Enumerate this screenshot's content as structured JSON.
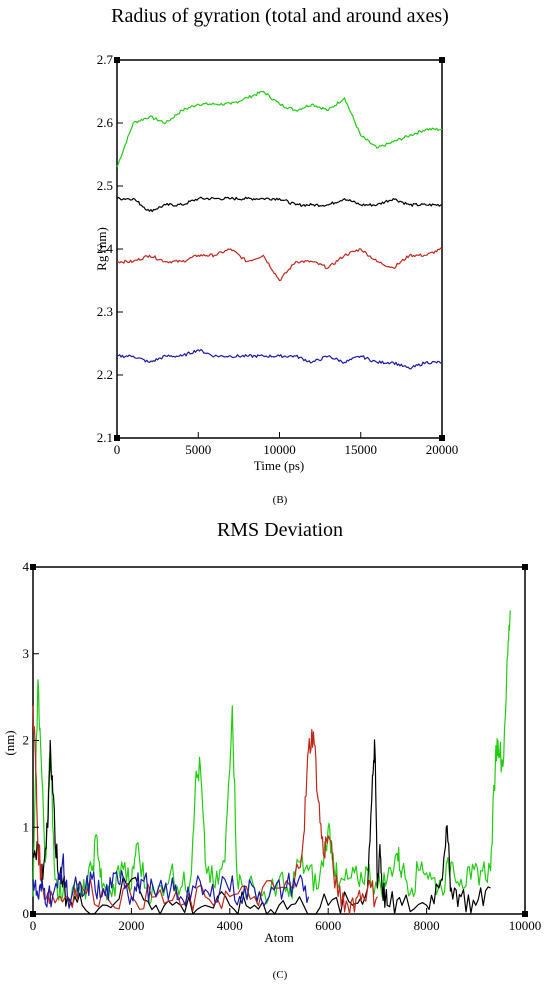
{
  "chart_data": [
    {
      "type": "line",
      "panel_label": "(B)",
      "title": "Radius of gyration (total and around axes)",
      "xlabel": "Time (ps)",
      "ylabel": "Rg (nm)",
      "xlim": [
        0,
        20000
      ],
      "ylim": [
        2.1,
        2.7
      ],
      "xticks": [
        "0",
        "5000",
        "10000",
        "15000",
        "20000"
      ],
      "yticks": [
        "2.1",
        "2.2",
        "2.3",
        "2.4",
        "2.5",
        "2.6",
        "2.7"
      ],
      "grid": false,
      "legend": "none",
      "x": [
        0,
        1000,
        2000,
        3000,
        4000,
        5000,
        6000,
        7000,
        8000,
        9000,
        10000,
        11000,
        12000,
        13000,
        14000,
        15000,
        16000,
        17000,
        18000,
        19000,
        20000
      ],
      "series": [
        {
          "color": "#22cc11",
          "values": [
            2.53,
            2.6,
            2.61,
            2.6,
            2.62,
            2.63,
            2.63,
            2.63,
            2.64,
            2.65,
            2.63,
            2.62,
            2.63,
            2.62,
            2.64,
            2.58,
            2.56,
            2.57,
            2.58,
            2.59,
            2.59
          ]
        },
        {
          "color": "#000000",
          "values": [
            2.48,
            2.48,
            2.46,
            2.47,
            2.47,
            2.48,
            2.48,
            2.48,
            2.48,
            2.48,
            2.48,
            2.47,
            2.47,
            2.47,
            2.48,
            2.47,
            2.47,
            2.48,
            2.47,
            2.47,
            2.47
          ]
        },
        {
          "color": "#c0281c",
          "values": [
            2.38,
            2.38,
            2.39,
            2.38,
            2.38,
            2.39,
            2.39,
            2.4,
            2.38,
            2.39,
            2.35,
            2.38,
            2.38,
            2.37,
            2.39,
            2.4,
            2.38,
            2.37,
            2.39,
            2.39,
            2.4
          ]
        },
        {
          "color": "#1a1aaa",
          "values": [
            2.23,
            2.23,
            2.22,
            2.23,
            2.23,
            2.24,
            2.23,
            2.23,
            2.23,
            2.23,
            2.23,
            2.23,
            2.22,
            2.23,
            2.22,
            2.23,
            2.22,
            2.22,
            2.21,
            2.22,
            2.22
          ]
        }
      ]
    },
    {
      "type": "line",
      "panel_label": "(C)",
      "title": "RMS Deviation",
      "xlabel": "Atom",
      "ylabel": "(nm)",
      "xlim": [
        0,
        10000
      ],
      "ylim": [
        0,
        4
      ],
      "xticks": [
        "0",
        "2000",
        "4000",
        "6000",
        "8000",
        "10000"
      ],
      "yticks": [
        "0",
        "1",
        "2",
        "3",
        "4"
      ],
      "grid": false,
      "legend": "none",
      "series": [
        {
          "color": "#22cc11",
          "x": [
            0,
            100,
            150,
            250,
            350,
            450,
            600,
            800,
            1000,
            1200,
            1300,
            1400,
            1600,
            1800,
            2000,
            2100,
            2300,
            2500,
            2800,
            3000,
            3200,
            3300,
            3400,
            3500,
            3700,
            3900,
            4050,
            4150,
            4300,
            4500,
            4800,
            5000,
            5200,
            5400,
            5600,
            5800,
            6000,
            6100,
            6200,
            6400,
            6600,
            6800,
            7000,
            7200,
            7400,
            7500,
            7700,
            7900,
            8100,
            8300,
            8500,
            8700,
            8900,
            9100,
            9300,
            9400,
            9450,
            9550,
            9650,
            9700
          ],
          "values": [
            0.2,
            2.7,
            2.0,
            0.6,
            1.9,
            0.4,
            0.2,
            0.3,
            0.2,
            0.5,
            0.9,
            0.3,
            0.2,
            0.6,
            0.3,
            0.8,
            0.3,
            0.2,
            0.5,
            0.3,
            0.4,
            1.5,
            1.7,
            0.6,
            0.3,
            0.6,
            2.4,
            0.4,
            0.3,
            0.3,
            0.2,
            0.4,
            0.2,
            0.6,
            0.5,
            0.3,
            1.0,
            0.7,
            0.3,
            0.4,
            0.4,
            0.5,
            0.3,
            0.4,
            0.7,
            0.5,
            0.3,
            0.6,
            0.4,
            0.3,
            0.6,
            0.4,
            0.4,
            0.5,
            0.5,
            1.8,
            2.0,
            1.7,
            3.0,
            3.5
          ]
        },
        {
          "color": "#000000",
          "x": [
            0,
            100,
            200,
            300,
            350,
            400,
            500,
            700,
            1000,
            1500,
            2000,
            2500,
            3000,
            3500,
            4000,
            4500,
            5000,
            5500,
            6000,
            6500,
            6800,
            6900,
            6950,
            7000,
            7050,
            7100,
            7200,
            7500,
            8000,
            8300,
            8400,
            8500,
            8700,
            9000,
            9300
          ],
          "values": [
            0.7,
            0.8,
            0.4,
            1.0,
            2.0,
            1.4,
            0.5,
            0.2,
            0.1,
            0.1,
            0.4,
            0.1,
            0.1,
            0.1,
            0.1,
            0.1,
            0.1,
            0.1,
            0.1,
            0.1,
            0.3,
            1.6,
            1.9,
            0.3,
            0.8,
            0.3,
            0.1,
            0.1,
            0.1,
            0.4,
            1.0,
            0.3,
            0.2,
            0.1,
            0.3
          ]
        },
        {
          "color": "#c0281c",
          "x": [
            0,
            50,
            100,
            200,
            400,
            700,
            1000,
            1500,
            2000,
            2500,
            3000,
            3500,
            4000,
            4500,
            5000,
            5300,
            5500,
            5600,
            5700,
            5800,
            5900,
            6000,
            6200,
            6400,
            6600,
            6800,
            7000
          ],
          "values": [
            2.4,
            1.8,
            0.8,
            0.3,
            0.2,
            0.2,
            0.3,
            0.2,
            0.2,
            0.2,
            0.1,
            0.2,
            0.2,
            0.2,
            0.3,
            0.3,
            0.9,
            1.9,
            2.1,
            1.3,
            0.7,
            0.9,
            0.2,
            0.1,
            0.2,
            0.3,
            0.2
          ]
        },
        {
          "color": "#1a1aaa",
          "x": [
            0,
            100,
            200,
            300,
            500,
            600,
            700,
            900,
            1000,
            1200,
            1400,
            1600,
            1800,
            2000,
            2200,
            2500,
            2800,
            3000,
            3300,
            3600,
            3900,
            4200,
            4500,
            4800,
            5100,
            5400,
            5600
          ],
          "values": [
            0.4,
            0.2,
            0.3,
            0.2,
            0.3,
            0.6,
            0.2,
            0.3,
            0.2,
            0.4,
            0.2,
            0.3,
            0.5,
            0.2,
            0.4,
            0.2,
            0.3,
            0.2,
            0.3,
            0.2,
            0.4,
            0.2,
            0.3,
            0.2,
            0.3,
            0.4,
            0.2
          ]
        }
      ]
    }
  ]
}
